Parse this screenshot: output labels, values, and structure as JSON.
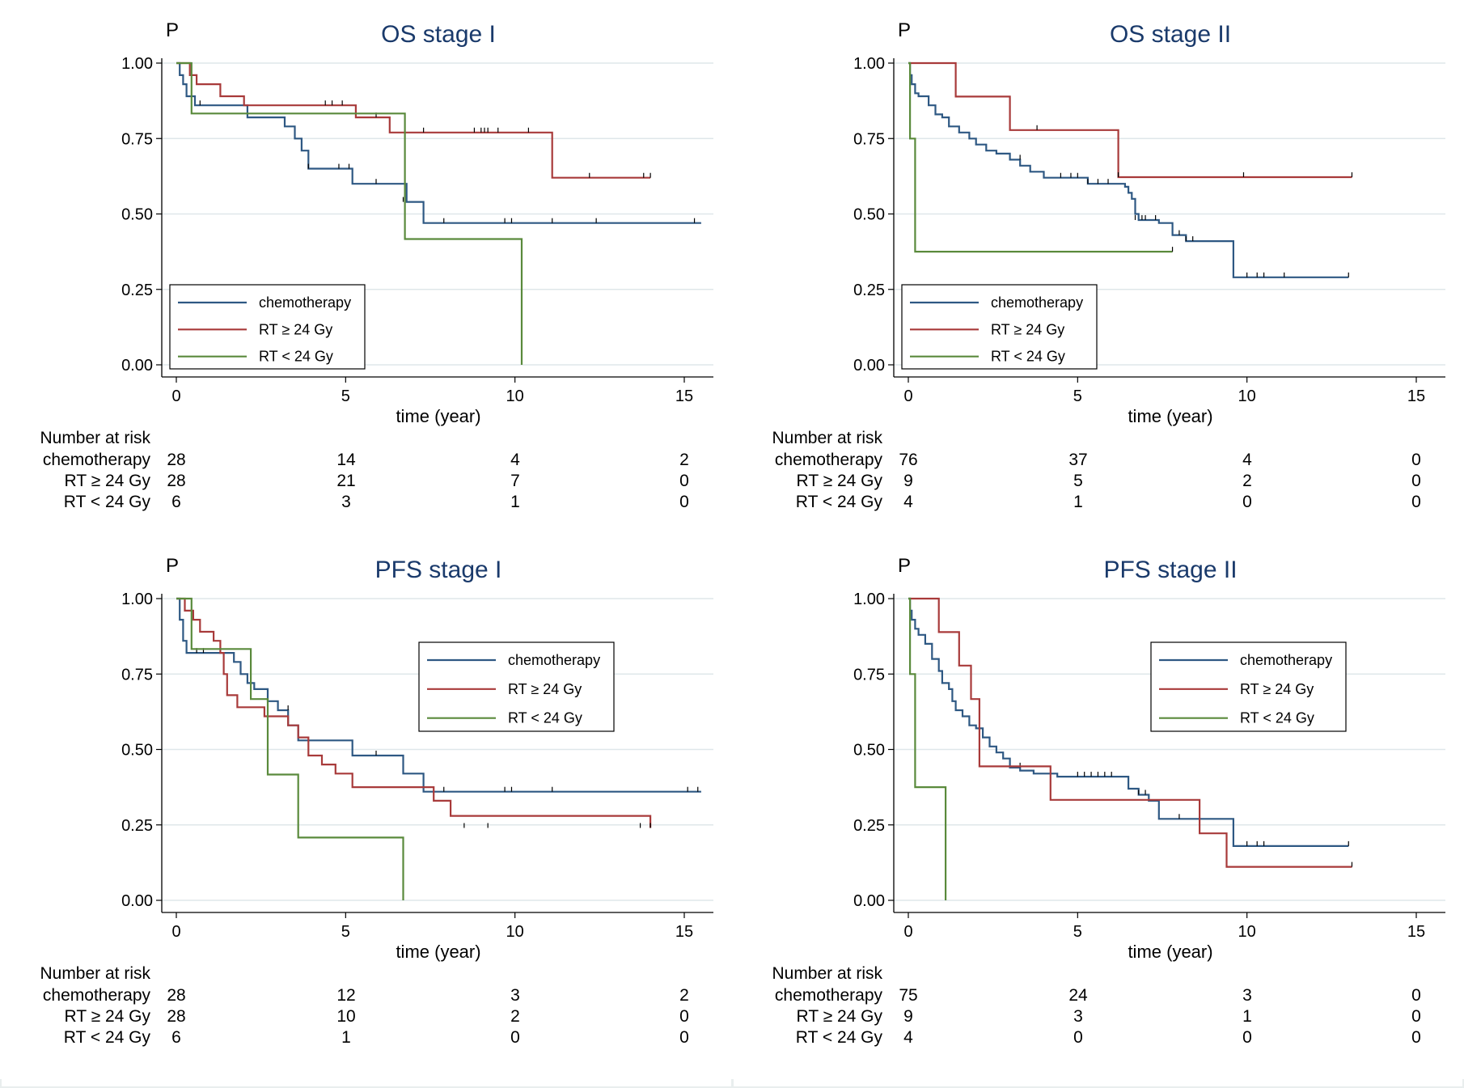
{
  "chart_data": [
    {
      "type": "line",
      "title": "OS stage I",
      "ylabel": "P",
      "xlabel": "time (year)",
      "xlim": [
        0,
        15.5
      ],
      "ylim": [
        0,
        1
      ],
      "xticks": [
        "0",
        "5",
        "10",
        "15"
      ],
      "yticks": [
        "0.00",
        "0.25",
        "0.50",
        "0.75",
        "1.00"
      ],
      "grid": true,
      "legend_position": "bottom-left",
      "series": [
        {
          "name": "chemotherapy",
          "color": "#2e5883",
          "x": [
            0,
            0.1,
            0.2,
            0.3,
            0.55,
            2.1,
            3.2,
            3.5,
            3.7,
            3.9,
            5.2,
            6.8,
            7.3,
            15.5
          ],
          "y": [
            1.0,
            0.96,
            0.93,
            0.89,
            0.86,
            0.82,
            0.79,
            0.75,
            0.71,
            0.65,
            0.6,
            0.54,
            0.47,
            0.47
          ],
          "censor_x": [
            0.7,
            3.9,
            4.8,
            5.1,
            5.9,
            6.7,
            7.9,
            9.7,
            9.9,
            11.1,
            12.4,
            15.3
          ],
          "censor_y": [
            0.86,
            0.65,
            0.65,
            0.65,
            0.6,
            0.54,
            0.47,
            0.47,
            0.47,
            0.47,
            0.47,
            0.47
          ]
        },
        {
          "name": "RT ≥ 24 Gy",
          "color": "#a83a3a",
          "x": [
            0,
            0.4,
            0.6,
            1.3,
            2.0,
            5.3,
            6.3,
            11.1,
            14.0
          ],
          "y": [
            1.0,
            0.96,
            0.93,
            0.89,
            0.86,
            0.82,
            0.77,
            0.62,
            0.62
          ],
          "censor_x": [
            4.4,
            4.6,
            4.9,
            5.9,
            7.3,
            8.8,
            9.0,
            9.1,
            9.2,
            9.5,
            10.4,
            12.2,
            13.8,
            14.0
          ],
          "censor_y": [
            0.86,
            0.86,
            0.86,
            0.82,
            0.77,
            0.77,
            0.77,
            0.77,
            0.77,
            0.77,
            0.77,
            0.62,
            0.62,
            0.62
          ]
        },
        {
          "name": "RT < 24 Gy",
          "color": "#5a8a3c",
          "x": [
            0,
            0.45,
            6.75,
            10.2,
            10.2
          ],
          "y": [
            1.0,
            0.833,
            0.417,
            0.417,
            0.0
          ],
          "censor_x": [],
          "censor_y": []
        }
      ]
    },
    {
      "type": "line",
      "title": "OS stage II",
      "ylabel": "P",
      "xlabel": "time (year)",
      "xlim": [
        0,
        15.5
      ],
      "ylim": [
        0,
        1
      ],
      "xticks": [
        "0",
        "5",
        "10",
        "15"
      ],
      "yticks": [
        "0.00",
        "0.25",
        "0.50",
        "0.75",
        "1.00"
      ],
      "grid": true,
      "legend_position": "bottom-left",
      "series": [
        {
          "name": "chemotherapy",
          "color": "#2e5883",
          "x": [
            0,
            0.05,
            0.1,
            0.2,
            0.3,
            0.6,
            0.8,
            1.0,
            1.2,
            1.5,
            1.8,
            2.0,
            2.3,
            2.6,
            3.0,
            3.3,
            3.6,
            4.0,
            5.3,
            6.4,
            6.5,
            6.6,
            6.7,
            6.8,
            7.4,
            7.8,
            8.2,
            9.6,
            9.6,
            13.0
          ],
          "y": [
            1.0,
            0.96,
            0.93,
            0.9,
            0.89,
            0.86,
            0.83,
            0.82,
            0.79,
            0.77,
            0.75,
            0.73,
            0.71,
            0.7,
            0.68,
            0.66,
            0.64,
            0.62,
            0.6,
            0.59,
            0.57,
            0.55,
            0.5,
            0.48,
            0.47,
            0.43,
            0.41,
            0.41,
            0.29,
            0.29
          ],
          "censor_x": [
            3.3,
            4.5,
            4.8,
            5.0,
            5.3,
            5.6,
            5.9,
            6.7,
            6.9,
            7.0,
            7.3,
            8.0,
            8.2,
            8.4,
            10.0,
            10.3,
            10.5,
            11.1,
            13.0
          ],
          "censor_y": [
            0.68,
            0.62,
            0.62,
            0.62,
            0.6,
            0.6,
            0.6,
            0.48,
            0.48,
            0.48,
            0.48,
            0.43,
            0.41,
            0.41,
            0.29,
            0.29,
            0.29,
            0.29,
            0.29
          ]
        },
        {
          "name": "RT ≥ 24 Gy",
          "color": "#a83a3a",
          "x": [
            0,
            1.4,
            3.0,
            6.2,
            13.1
          ],
          "y": [
            1.0,
            0.889,
            0.778,
            0.622,
            0.622
          ],
          "censor_x": [
            3.8,
            6.2,
            9.9,
            13.1
          ],
          "censor_y": [
            0.778,
            0.622,
            0.622,
            0.622
          ]
        },
        {
          "name": "RT < 24 Gy",
          "color": "#5a8a3c",
          "x": [
            0,
            0.05,
            0.2,
            7.8
          ],
          "y": [
            1.0,
            0.75,
            0.375,
            0.375
          ],
          "censor_x": [
            7.8
          ],
          "censor_y": [
            0.375
          ]
        }
      ]
    },
    {
      "type": "line",
      "title": "PFS stage I",
      "ylabel": "P",
      "xlabel": "time (year)",
      "xlim": [
        0,
        15.5
      ],
      "ylim": [
        0,
        1
      ],
      "xticks": [
        "0",
        "5",
        "10",
        "15"
      ],
      "yticks": [
        "0.00",
        "0.25",
        "0.50",
        "0.75",
        "1.00"
      ],
      "grid": true,
      "legend_position": "top-right",
      "series": [
        {
          "name": "chemotherapy",
          "color": "#2e5883",
          "x": [
            0,
            0.1,
            0.2,
            0.3,
            1.7,
            1.9,
            2.1,
            2.3,
            2.7,
            3.0,
            3.3,
            3.6,
            5.2,
            6.7,
            7.3,
            15.5
          ],
          "y": [
            1.0,
            0.93,
            0.86,
            0.82,
            0.79,
            0.75,
            0.72,
            0.7,
            0.66,
            0.63,
            0.58,
            0.53,
            0.48,
            0.42,
            0.36,
            0.36
          ],
          "censor_x": [
            0.6,
            0.8,
            3.3,
            5.9,
            7.9,
            9.7,
            9.9,
            11.1,
            15.1,
            15.4
          ],
          "censor_y": [
            0.82,
            0.82,
            0.63,
            0.48,
            0.36,
            0.36,
            0.36,
            0.36,
            0.36,
            0.36
          ]
        },
        {
          "name": "RT ≥ 24 Gy",
          "color": "#a83a3a",
          "x": [
            0,
            0.25,
            0.5,
            0.7,
            1.1,
            1.3,
            1.4,
            1.5,
            1.8,
            2.1,
            2.6,
            3.3,
            3.6,
            3.9,
            4.3,
            4.7,
            5.2,
            7.3,
            7.6,
            8.1,
            14.0
          ],
          "y": [
            1.0,
            0.96,
            0.93,
            0.89,
            0.86,
            0.82,
            0.75,
            0.68,
            0.64,
            0.64,
            0.61,
            0.58,
            0.54,
            0.48,
            0.45,
            0.42,
            0.375,
            0.375,
            0.33,
            0.28,
            0.24
          ],
          "censor_x": [
            8.5,
            9.2,
            13.7,
            14.0
          ],
          "censor_y": [
            0.24,
            0.24,
            0.24,
            0.24
          ]
        },
        {
          "name": "RT < 24 Gy",
          "color": "#5a8a3c",
          "x": [
            0,
            0.45,
            2.2,
            2.7,
            3.6,
            6.7,
            6.7
          ],
          "y": [
            1.0,
            0.833,
            0.667,
            0.417,
            0.208,
            0.208,
            0.0
          ],
          "censor_x": [],
          "censor_y": []
        }
      ]
    },
    {
      "type": "line",
      "title": "PFS stage II",
      "ylabel": "P",
      "xlabel": "time (year)",
      "xlim": [
        0,
        15.5
      ],
      "ylim": [
        0,
        1
      ],
      "xticks": [
        "0",
        "5",
        "10",
        "15"
      ],
      "yticks": [
        "0.00",
        "0.25",
        "0.50",
        "0.75",
        "1.00"
      ],
      "grid": true,
      "legend_position": "top-right",
      "series": [
        {
          "name": "chemotherapy",
          "color": "#2e5883",
          "x": [
            0,
            0.05,
            0.1,
            0.2,
            0.3,
            0.5,
            0.7,
            0.9,
            1.0,
            1.2,
            1.3,
            1.4,
            1.6,
            1.8,
            1.9,
            2.0,
            2.2,
            2.4,
            2.6,
            2.8,
            3.0,
            3.3,
            3.7,
            4.4,
            5.4,
            6.5,
            6.8,
            7.1,
            7.4,
            7.6,
            9.6,
            13.0
          ],
          "y": [
            1.0,
            0.96,
            0.93,
            0.9,
            0.88,
            0.85,
            0.8,
            0.76,
            0.72,
            0.7,
            0.66,
            0.63,
            0.61,
            0.58,
            0.58,
            0.57,
            0.54,
            0.51,
            0.49,
            0.47,
            0.44,
            0.43,
            0.42,
            0.41,
            0.41,
            0.37,
            0.35,
            0.33,
            0.27,
            0.27,
            0.18,
            0.18
          ],
          "censor_x": [
            3.3,
            5.0,
            5.2,
            5.4,
            5.6,
            5.8,
            6.0,
            6.8,
            7.0,
            8.0,
            10.0,
            10.3,
            10.5,
            13.0
          ],
          "censor_y": [
            0.44,
            0.41,
            0.41,
            0.41,
            0.41,
            0.41,
            0.41,
            0.35,
            0.35,
            0.27,
            0.18,
            0.18,
            0.18,
            0.18
          ]
        },
        {
          "name": "RT ≥ 24 Gy",
          "color": "#a83a3a",
          "x": [
            0,
            0.9,
            1.5,
            1.85,
            2.1,
            4.2,
            8.6,
            9.4,
            13.1
          ],
          "y": [
            1.0,
            0.889,
            0.778,
            0.667,
            0.444,
            0.333,
            0.222,
            0.111,
            0.111
          ],
          "censor_x": [
            13.1
          ],
          "censor_y": [
            0.111
          ]
        },
        {
          "name": "RT < 24 Gy",
          "color": "#5a8a3c",
          "x": [
            0,
            0.05,
            0.2,
            1.1,
            1.1
          ],
          "y": [
            1.0,
            0.75,
            0.375,
            0.375,
            0.0
          ],
          "censor_x": [],
          "censor_y": []
        }
      ]
    }
  ],
  "panels": [
    {
      "title": "OS stage I",
      "ylab": "P",
      "xlabel": "time (year)",
      "xticks": [
        "0",
        "5",
        "10",
        "15"
      ],
      "yticks": [
        "0.00",
        "0.25",
        "0.50",
        "0.75",
        "1.00"
      ],
      "legend": [
        "chemotherapy",
        "RT ≥ 24 Gy",
        "RT < 24 Gy"
      ],
      "risk_header": "Number at risk",
      "risk_rows": [
        {
          "label": "chemotherapy",
          "values": [
            "28",
            "14",
            "4",
            "2"
          ]
        },
        {
          "label": "RT ≥ 24 Gy",
          "values": [
            "28",
            "21",
            "7",
            "0"
          ]
        },
        {
          "label": "RT < 24 Gy",
          "values": [
            "6",
            "3",
            "1",
            "0"
          ]
        }
      ]
    },
    {
      "title": "OS stage II",
      "ylab": "P",
      "xlabel": "time (year)",
      "xticks": [
        "0",
        "5",
        "10",
        "15"
      ],
      "yticks": [
        "0.00",
        "0.25",
        "0.50",
        "0.75",
        "1.00"
      ],
      "legend": [
        "chemotherapy",
        "RT ≥ 24 Gy",
        "RT < 24 Gy"
      ],
      "risk_header": "Number at risk",
      "risk_rows": [
        {
          "label": "chemotherapy",
          "values": [
            "76",
            "37",
            "4",
            "0"
          ]
        },
        {
          "label": "RT ≥ 24 Gy",
          "values": [
            "9",
            "5",
            "2",
            "0"
          ]
        },
        {
          "label": "RT < 24 Gy",
          "values": [
            "4",
            "1",
            "0",
            "0"
          ]
        }
      ]
    },
    {
      "title": "PFS stage I",
      "ylab": "P",
      "xlabel": "time (year)",
      "xticks": [
        "0",
        "5",
        "10",
        "15"
      ],
      "yticks": [
        "0.00",
        "0.25",
        "0.50",
        "0.75",
        "1.00"
      ],
      "legend": [
        "chemotherapy",
        "RT ≥ 24 Gy",
        "RT < 24 Gy"
      ],
      "risk_header": "Number at risk",
      "risk_rows": [
        {
          "label": "chemotherapy",
          "values": [
            "28",
            "12",
            "3",
            "2"
          ]
        },
        {
          "label": "RT ≥ 24 Gy",
          "values": [
            "28",
            "10",
            "2",
            "0"
          ]
        },
        {
          "label": "RT < 24 Gy",
          "values": [
            "6",
            "1",
            "0",
            "0"
          ]
        }
      ]
    },
    {
      "title": "PFS stage II",
      "ylab": "P",
      "xlabel": "time (year)",
      "xticks": [
        "0",
        "5",
        "10",
        "15"
      ],
      "yticks": [
        "0.00",
        "0.25",
        "0.50",
        "0.75",
        "1.00"
      ],
      "legend": [
        "chemotherapy",
        "RT ≥ 24 Gy",
        "RT < 24 Gy"
      ],
      "risk_header": "Number at risk",
      "risk_rows": [
        {
          "label": "chemotherapy",
          "values": [
            "75",
            "24",
            "3",
            "0"
          ]
        },
        {
          "label": "RT ≥ 24 Gy",
          "values": [
            "9",
            "3",
            "1",
            "0"
          ]
        },
        {
          "label": "RT < 24 Gy",
          "values": [
            "4",
            "0",
            "0",
            "0"
          ]
        }
      ]
    }
  ]
}
